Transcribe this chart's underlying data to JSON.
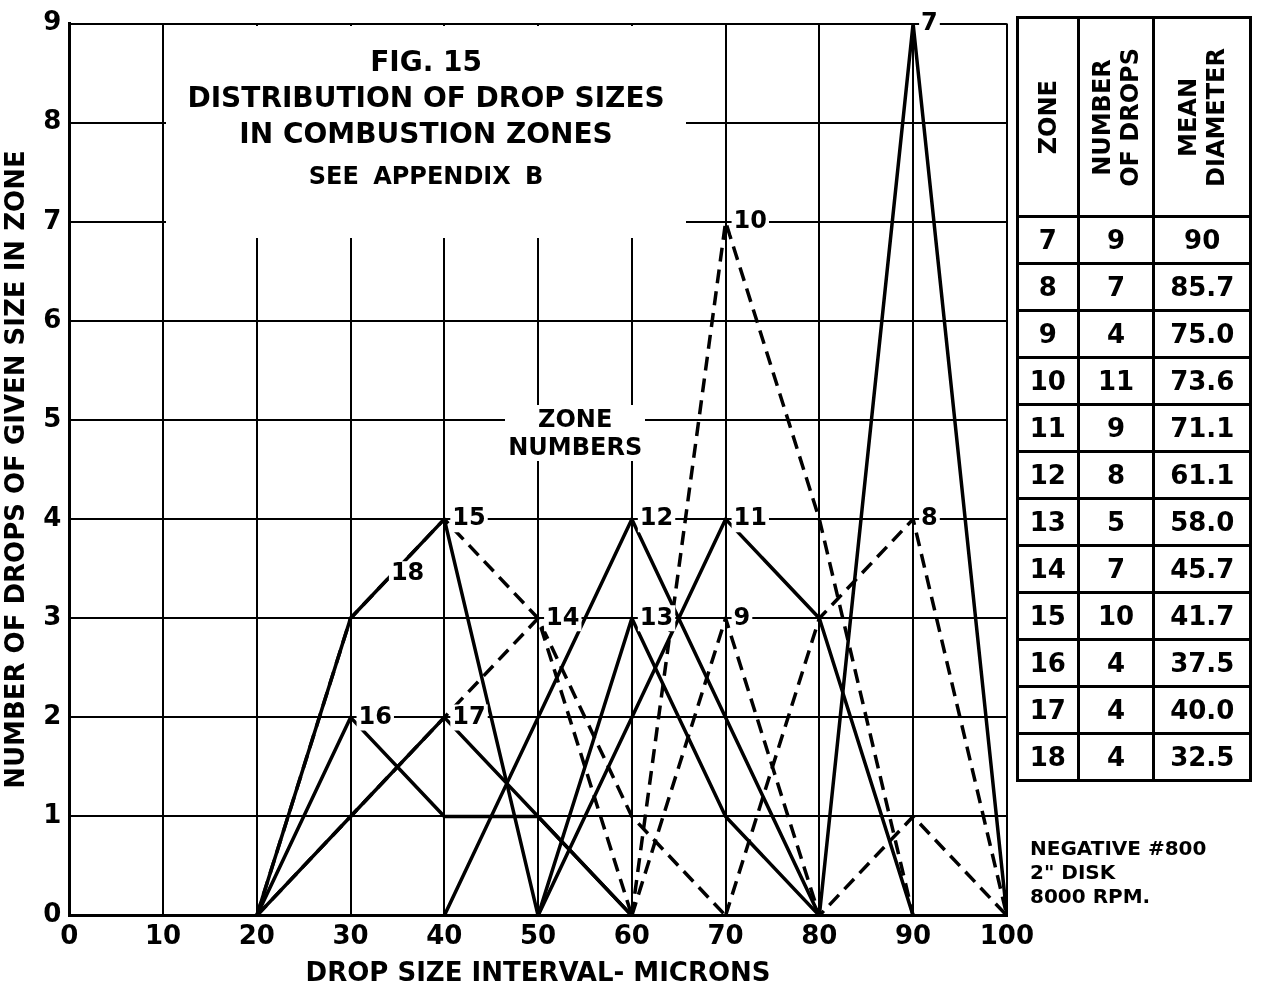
{
  "chart_data": [
    {
      "type": "line",
      "title": "FIG. 15",
      "subtitle": "DISTRIBUTION OF DROP SIZES\nIN COMBUSTION ZONES",
      "xlabel": "DROP SIZE INTERVAL- MICRONS",
      "ylabel": "NUMBER OF DROPS OF GIVEN SIZE IN ZONE",
      "xlim": [
        0,
        100
      ],
      "xticks": [
        0,
        10,
        20,
        30,
        40,
        50,
        60,
        70,
        80,
        90,
        100
      ],
      "ylim": [
        0,
        9
      ],
      "yticks": [
        0,
        1,
        2,
        3,
        4,
        5,
        6,
        7,
        8,
        9
      ],
      "grid": true,
      "marker": "none",
      "legend": "right",
      "legend_title": "ZONE",
      "annotations": [
        "SEE APPENDIX B",
        "ZONE\nNUMBERS",
        "NEGATIVE #800\n2\" DISK\n8000 RPM.",
        "NUMBER\nOF DROPS",
        "MEAN\nDIAMETER",
        "9",
        "90",
        "7",
        "85.7",
        "4",
        "75.0",
        "11",
        "73.6",
        "9",
        "71.1",
        "8",
        "61.1",
        "5",
        "58.0",
        "7",
        "45.7",
        "10",
        "41.7",
        "4",
        "37.5",
        "4",
        "40.0",
        "4",
        "32.5"
      ],
      "series": [
        {
          "name": "7",
          "color": "#000000",
          "line_style": "solid",
          "x": [
            80,
            90,
            100
          ],
          "values": [
            0,
            9,
            0
          ]
        },
        {
          "name": "8",
          "color": "#000000",
          "line_style": "dashed",
          "x": [
            70,
            80,
            90,
            100
          ],
          "values": [
            0,
            3,
            4,
            0
          ]
        },
        {
          "name": "9",
          "color": "#000000",
          "line_style": "dashed",
          "x": [
            60,
            70,
            80,
            90,
            100
          ],
          "values": [
            0,
            3,
            0,
            1,
            0
          ]
        },
        {
          "name": "10",
          "color": "#000000",
          "line_style": "dashed",
          "x": [
            60,
            70,
            80,
            90
          ],
          "values": [
            0,
            7,
            4,
            0
          ]
        },
        {
          "name": "11",
          "color": "#000000",
          "line_style": "solid",
          "x": [
            50,
            60,
            70,
            80,
            90
          ],
          "values": [
            0,
            2,
            4,
            3,
            0
          ]
        },
        {
          "name": "12",
          "color": "#000000",
          "line_style": "solid",
          "x": [
            40,
            50,
            60,
            70,
            80
          ],
          "values": [
            0,
            2,
            4,
            2,
            0
          ]
        },
        {
          "name": "13",
          "color": "#000000",
          "line_style": "solid",
          "x": [
            50,
            60,
            70,
            80
          ],
          "values": [
            0,
            3,
            1,
            0
          ]
        },
        {
          "name": "14",
          "color": "#000000",
          "line_style": "dashed",
          "x": [
            20,
            30,
            40,
            50,
            60,
            70
          ],
          "values": [
            0,
            1,
            2,
            3,
            1,
            0
          ]
        },
        {
          "name": "15",
          "color": "#000000",
          "line_style": "dashed",
          "x": [
            20,
            30,
            40,
            50,
            60
          ],
          "values": [
            0,
            3,
            4,
            3,
            0
          ]
        },
        {
          "name": "16",
          "color": "#000000",
          "line_style": "solid",
          "x": [
            20,
            30,
            40,
            50,
            60
          ],
          "values": [
            0,
            2,
            1,
            1,
            0
          ]
        },
        {
          "name": "17",
          "color": "#000000",
          "line_style": "solid",
          "x": [
            20,
            30,
            40,
            50,
            60
          ],
          "values": [
            0,
            1,
            2,
            1,
            0
          ]
        },
        {
          "name": "18",
          "color": "#000000",
          "line_style": "solid",
          "x": [
            20,
            30,
            40,
            50
          ],
          "values": [
            0,
            3,
            4,
            0
          ]
        }
      ]
    }
  ]
}
